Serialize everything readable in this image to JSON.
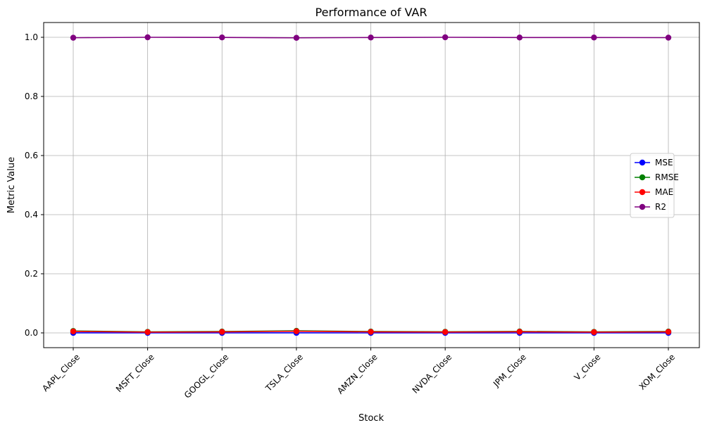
{
  "chart_data": {
    "type": "line",
    "title": "Performance of VAR",
    "xlabel": "Stock",
    "ylabel": "Metric Value",
    "categories": [
      "AAPL_Close",
      "MSFT_Close",
      "GOOGL_Close",
      "TSLA_Close",
      "AMZN_Close",
      "NVDA_Close",
      "JPM_Close",
      "V_Close",
      "XOM_Close"
    ],
    "ylim": [
      -0.05,
      1.05
    ],
    "yticks": [
      "0.0",
      "0.2",
      "0.4",
      "0.6",
      "0.8",
      "1.0"
    ],
    "grid": true,
    "legend_position": "center-right",
    "series": [
      {
        "name": "MSE",
        "color": "#0000ff",
        "values": [
          5e-05,
          1e-05,
          2e-05,
          5e-05,
          2e-05,
          1e-05,
          2e-05,
          1e-05,
          2e-05
        ]
      },
      {
        "name": "RMSE",
        "color": "#008000",
        "values": [
          0.0065,
          0.0035,
          0.0045,
          0.007,
          0.0045,
          0.0038,
          0.0048,
          0.0035,
          0.0045
        ]
      },
      {
        "name": "MAE",
        "color": "#ff0000",
        "values": [
          0.005,
          0.0025,
          0.0035,
          0.0055,
          0.0035,
          0.0028,
          0.0038,
          0.0025,
          0.0035
        ]
      },
      {
        "name": "R2",
        "color": "#800080",
        "values": [
          0.9985,
          1.0,
          0.9995,
          0.9982,
          0.9993,
          1.0,
          0.9992,
          0.9993,
          0.9988
        ]
      }
    ]
  }
}
